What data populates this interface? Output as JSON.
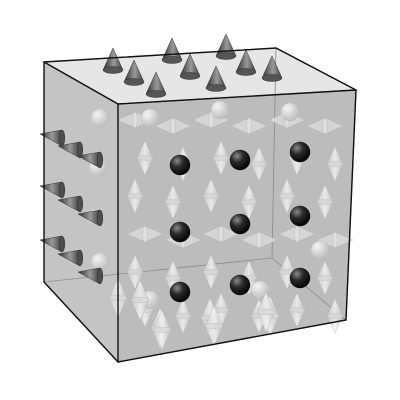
{
  "figure": {
    "subject": "cube",
    "background": "#ffffff",
    "edge_color": "#111111",
    "face_fill": "#bdbdbd",
    "ghost_fill": "#d3d3d3",
    "cone_dark": "#4a4a4a",
    "cone_light": "#eeeeee",
    "sphere_dark": "#111111"
  },
  "lattice": {
    "top_face_cone_rows": 3,
    "left_face_cone_rows": 3,
    "front_face_sphere_grid": [
      3,
      3
    ],
    "interior_marker": "double-cone"
  }
}
